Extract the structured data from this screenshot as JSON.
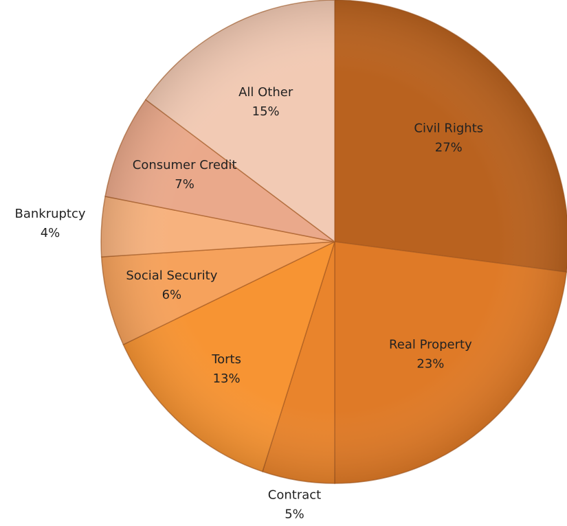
{
  "chart_data": {
    "type": "pie",
    "categories": [
      "Civil Rights",
      "Real Property",
      "Contract",
      "Torts",
      "Social Security",
      "Bankruptcy",
      "Consumer Credit",
      "All Other"
    ],
    "values": [
      27,
      23,
      5,
      13,
      6,
      4,
      7,
      15
    ],
    "value_labels": [
      "27%",
      "23%",
      "5%",
      "13%",
      "6%",
      "4%",
      "7%",
      "15%"
    ],
    "colors": [
      "#b9621f",
      "#df7a27",
      "#e9842c",
      "#f79433",
      "#f6a25c",
      "#f7b27e",
      "#eaa98b",
      "#f2cab4"
    ]
  }
}
